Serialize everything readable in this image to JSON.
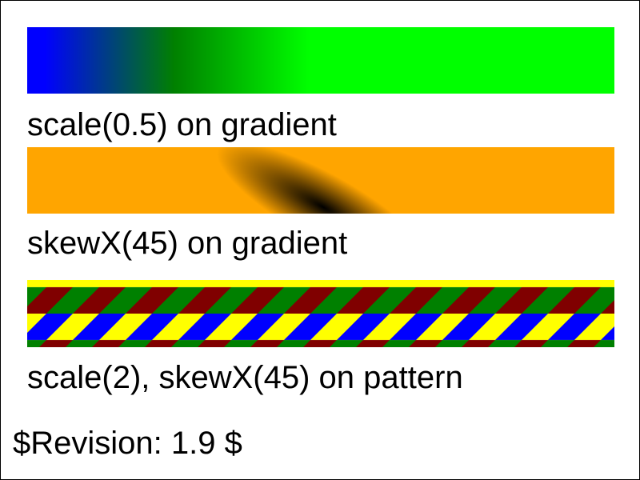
{
  "labels": {
    "gradient_scale": "scale(0.5) on gradient",
    "gradient_skew": "skewX(45) on gradient",
    "pattern": "scale(2), skewX(45) on pattern",
    "revision": "$Revision: 1.9 $"
  },
  "colors": {
    "linear_start": "#0000ff",
    "linear_mid": "#008000",
    "linear_end": "#00ff00",
    "radial_center": "#000000",
    "radial_edge": "#ffa500",
    "pattern_yellow": "#ffff00",
    "pattern_green": "#008000",
    "pattern_blue": "#0000ff",
    "pattern_red": "#800000"
  }
}
